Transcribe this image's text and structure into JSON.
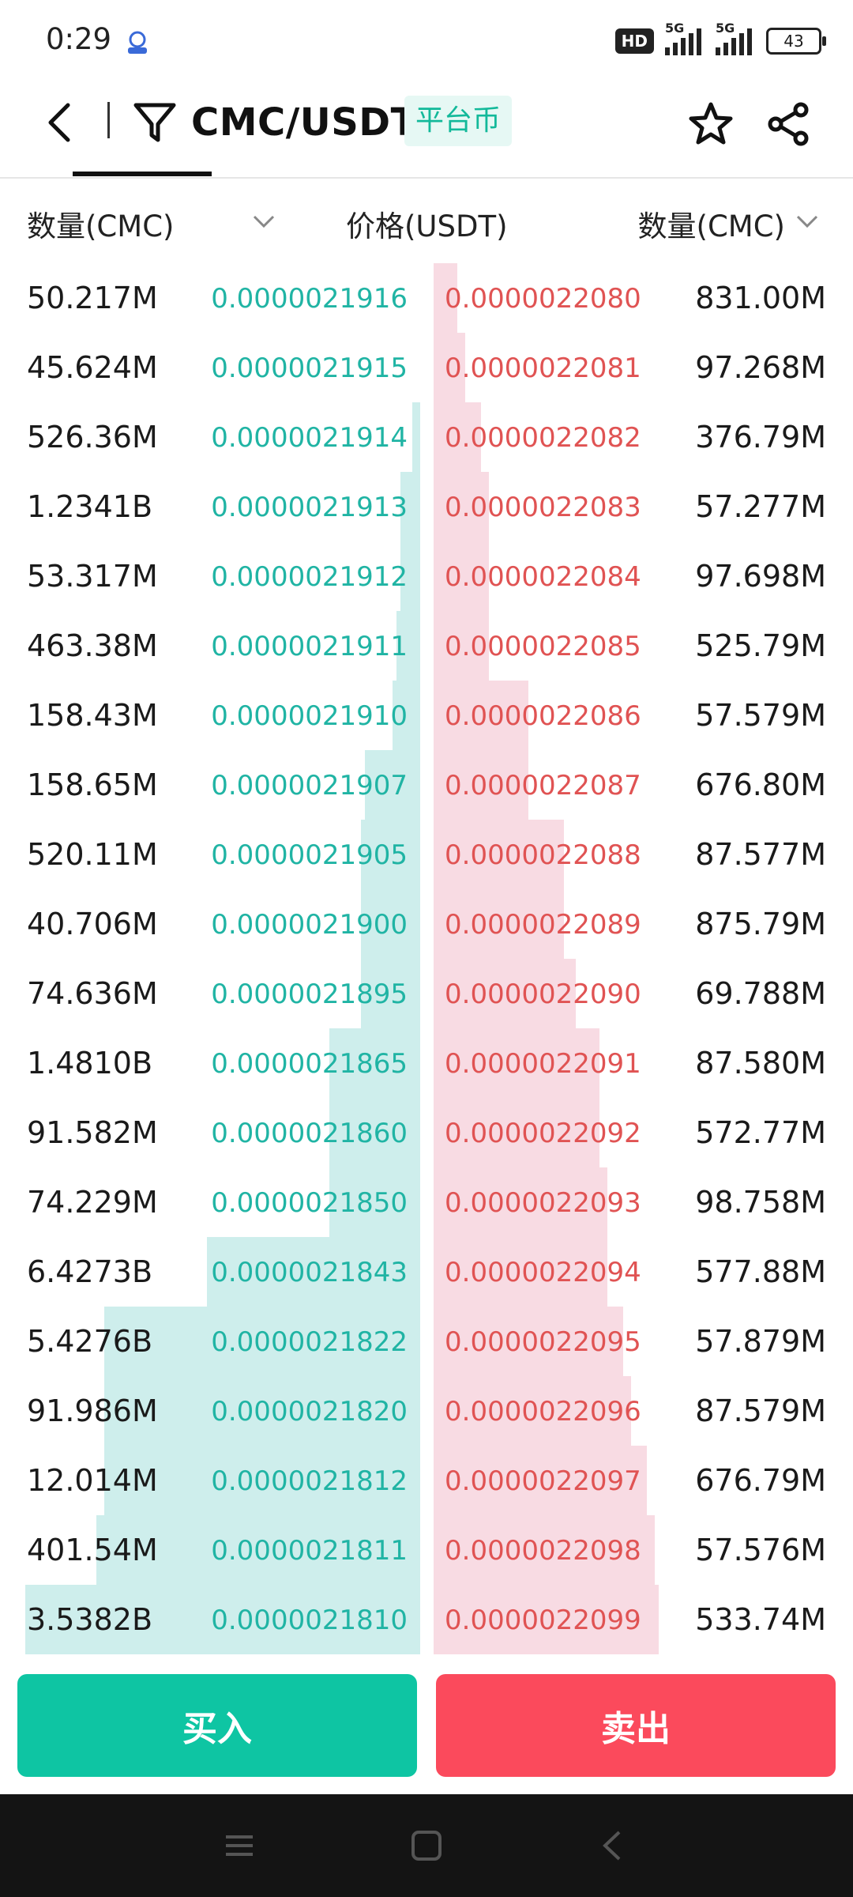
{
  "status_bar": {
    "time": "0:29",
    "hd": "HD",
    "net1": "5G",
    "net2": "5G",
    "battery": "43"
  },
  "header": {
    "pair": "CMC/USDT",
    "tag": "平台币"
  },
  "columns": {
    "bid_qty": "数量(CMC)",
    "price": "价格(USDT)",
    "ask_qty": "数量(CMC)"
  },
  "order_book": {
    "bids": [
      {
        "qty": "50.217M",
        "price": "0.0000021916",
        "depth": 0.0
      },
      {
        "qty": "45.624M",
        "price": "0.0000021915",
        "depth": 0.0
      },
      {
        "qty": "526.36M",
        "price": "0.0000021914",
        "depth": 0.02
      },
      {
        "qty": "1.2341B",
        "price": "0.0000021913",
        "depth": 0.05
      },
      {
        "qty": "53.317M",
        "price": "0.0000021912",
        "depth": 0.05
      },
      {
        "qty": "463.38M",
        "price": "0.0000021911",
        "depth": 0.06
      },
      {
        "qty": "158.43M",
        "price": "0.0000021910",
        "depth": 0.07
      },
      {
        "qty": "158.65M",
        "price": "0.0000021907",
        "depth": 0.14
      },
      {
        "qty": "520.11M",
        "price": "0.0000021905",
        "depth": 0.15
      },
      {
        "qty": "40.706M",
        "price": "0.0000021900",
        "depth": 0.15
      },
      {
        "qty": "74.636M",
        "price": "0.0000021895",
        "depth": 0.15
      },
      {
        "qty": "1.4810B",
        "price": "0.0000021865",
        "depth": 0.23
      },
      {
        "qty": "91.582M",
        "price": "0.0000021860",
        "depth": 0.23
      },
      {
        "qty": "74.229M",
        "price": "0.0000021850",
        "depth": 0.23
      },
      {
        "qty": "6.4273B",
        "price": "0.0000021843",
        "depth": 0.54
      },
      {
        "qty": "5.4276B",
        "price": "0.0000021822",
        "depth": 0.8
      },
      {
        "qty": "91.986M",
        "price": "0.0000021820",
        "depth": 0.8
      },
      {
        "qty": "12.014M",
        "price": "0.0000021812",
        "depth": 0.8
      },
      {
        "qty": "401.54M",
        "price": "0.0000021811",
        "depth": 0.82
      },
      {
        "qty": "3.5382B",
        "price": "0.0000021810",
        "depth": 1.0
      }
    ],
    "asks": [
      {
        "price": "0.0000022080",
        "qty": "831.00M",
        "depth": 0.06
      },
      {
        "price": "0.0000022081",
        "qty": "97.268M",
        "depth": 0.08
      },
      {
        "price": "0.0000022082",
        "qty": "376.79M",
        "depth": 0.12
      },
      {
        "price": "0.0000022083",
        "qty": "57.277M",
        "depth": 0.14
      },
      {
        "price": "0.0000022084",
        "qty": "97.698M",
        "depth": 0.14
      },
      {
        "price": "0.0000022085",
        "qty": "525.79M",
        "depth": 0.14
      },
      {
        "price": "0.0000022086",
        "qty": "57.579M",
        "depth": 0.24
      },
      {
        "price": "0.0000022087",
        "qty": "676.80M",
        "depth": 0.24
      },
      {
        "price": "0.0000022088",
        "qty": "87.577M",
        "depth": 0.33
      },
      {
        "price": "0.0000022089",
        "qty": "875.79M",
        "depth": 0.33
      },
      {
        "price": "0.0000022090",
        "qty": "69.788M",
        "depth": 0.36
      },
      {
        "price": "0.0000022091",
        "qty": "87.580M",
        "depth": 0.42
      },
      {
        "price": "0.0000022092",
        "qty": "572.77M",
        "depth": 0.42
      },
      {
        "price": "0.0000022093",
        "qty": "98.758M",
        "depth": 0.44
      },
      {
        "price": "0.0000022094",
        "qty": "577.88M",
        "depth": 0.44
      },
      {
        "price": "0.0000022095",
        "qty": "57.879M",
        "depth": 0.48
      },
      {
        "price": "0.0000022096",
        "qty": "87.579M",
        "depth": 0.5
      },
      {
        "price": "0.0000022097",
        "qty": "676.79M",
        "depth": 0.54
      },
      {
        "price": "0.0000022098",
        "qty": "57.576M",
        "depth": 0.56
      },
      {
        "price": "0.0000022099",
        "qty": "533.74M",
        "depth": 0.57
      }
    ]
  },
  "actions": {
    "buy": "买入",
    "sell": "卖出"
  },
  "colors": {
    "bid_text": "#20b4a4",
    "bid_depth": "#ceeeec",
    "ask_text": "#e05353",
    "ask_depth": "#f8dbe3",
    "buy_button": "#0ec5a3",
    "sell_button": "#fb4a5c"
  }
}
